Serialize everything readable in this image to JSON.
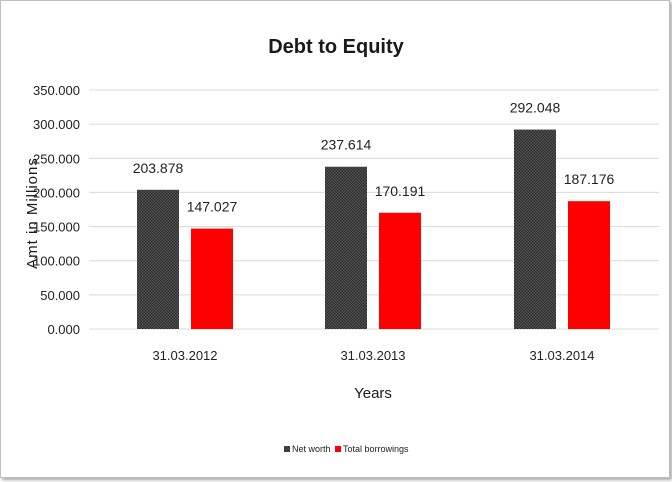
{
  "chart_data": {
    "type": "bar",
    "title": "Debt to Equity",
    "xlabel": "Years",
    "ylabel": "Amt in Millions",
    "categories": [
      "31.03.2012",
      "31.03.2013",
      "31.03.2014"
    ],
    "series": [
      {
        "name": "Net worth",
        "values": [
          203.878,
          237.614,
          292.048
        ],
        "color": "#3a3a3a"
      },
      {
        "name": "Total borrowings",
        "values": [
          147.027,
          170.191,
          187.176
        ],
        "color": "#ff0000"
      }
    ],
    "data_labels": [
      [
        "203.878",
        "237.614",
        "292.048"
      ],
      [
        "147.027",
        "170.191",
        "187.176"
      ]
    ],
    "ylim": [
      0,
      350
    ],
    "yticks": [
      "0.000",
      "50.000",
      "100.000",
      "150.000",
      "200.000",
      "250.000",
      "300.000",
      "350.000"
    ],
    "grid": true,
    "legend_position": "bottom"
  }
}
